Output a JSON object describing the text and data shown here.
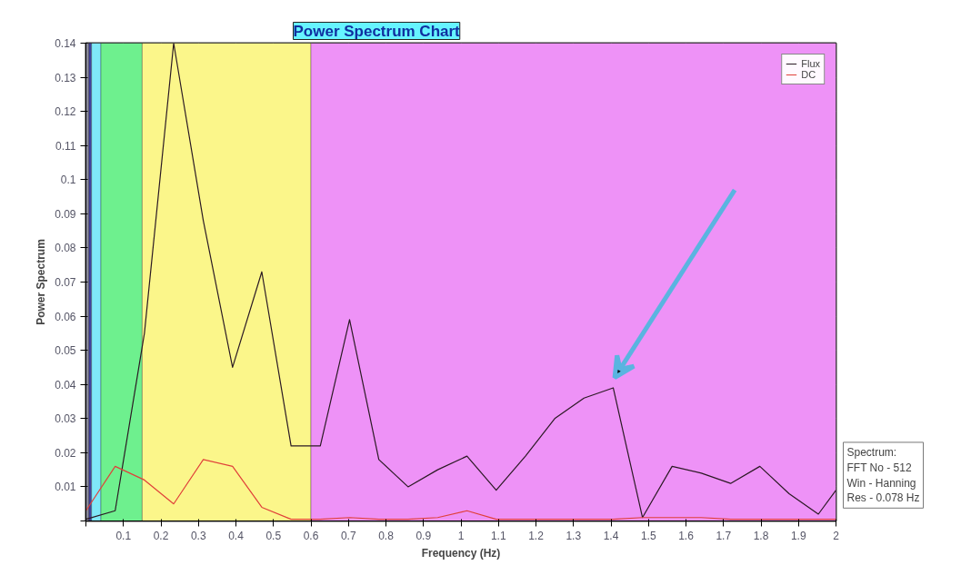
{
  "chart_data": {
    "type": "line",
    "title": "Power Spectrum Chart",
    "xlabel": "Frequency (Hz)",
    "ylabel": "Power Spectrum",
    "x": [
      0,
      0.078,
      0.156,
      0.234,
      0.313,
      0.391,
      0.469,
      0.547,
      0.625,
      0.703,
      0.781,
      0.859,
      0.938,
      1.016,
      1.094,
      1.172,
      1.25,
      1.328,
      1.406,
      1.484,
      1.563,
      1.641,
      1.719,
      1.797,
      1.875,
      1.953,
      2.0
    ],
    "series": [
      {
        "name": "Flux",
        "color": "#2b1a24",
        "values": [
          0.0005,
          0.003,
          0.055,
          0.14,
          0.088,
          0.045,
          0.073,
          0.022,
          0.022,
          0.059,
          0.018,
          0.01,
          0.015,
          0.019,
          0.009,
          0.019,
          0.03,
          0.036,
          0.039,
          0.001,
          0.016,
          0.014,
          0.011,
          0.016,
          0.008,
          0.002,
          0.009
        ]
      },
      {
        "name": "DC",
        "color": "#e0403a",
        "values": [
          0.003,
          0.016,
          0.012,
          0.005,
          0.018,
          0.016,
          0.004,
          0.0005,
          0.0005,
          0.001,
          0.0005,
          0.0005,
          0.001,
          0.003,
          0.0005,
          0.0005,
          0.0005,
          0.0005,
          0.0005,
          0.001,
          0.001,
          0.001,
          0.0005,
          0.0005,
          0.0005,
          0.0005,
          0.0005
        ]
      }
    ],
    "xlim": [
      0,
      2
    ],
    "xticks": [
      {
        "value": 0,
        "label": null
      },
      0.1,
      0.2,
      0.3,
      0.4,
      0.5,
      0.6,
      0.7,
      0.8,
      0.9,
      1,
      1.1,
      1.2,
      1.3,
      1.4,
      1.5,
      1.6,
      1.7,
      1.8,
      1.9,
      2
    ],
    "ylim": [
      0,
      0.14
    ],
    "yticks": [
      {
        "value": 0,
        "label": null
      },
      0.01,
      0.02,
      0.03,
      0.04,
      0.05,
      0.06,
      0.07,
      0.08,
      0.09,
      0.1,
      0.11,
      0.12,
      0.13,
      0.14
    ],
    "bands": [
      {
        "axis": "x",
        "from": 0,
        "to": 0.008,
        "color": "#8a8a9a"
      },
      {
        "axis": "x",
        "from": 0.008,
        "to": 0.015,
        "color": "#4040a0"
      },
      {
        "axis": "x",
        "from": 0.015,
        "to": 0.04,
        "color": "#7fe8f8"
      },
      {
        "axis": "x",
        "from": 0.04,
        "to": 0.15,
        "color": "#6ef08e"
      },
      {
        "axis": "x",
        "from": 0.15,
        "to": 0.6,
        "color": "#fbf68a"
      },
      {
        "axis": "x",
        "from": 0.6,
        "to": 2,
        "color": "#ee92f7"
      }
    ],
    "annotations": [
      "Spectrum:",
      "FFT No - 512",
      "Win - Hanning",
      "Res - 0.078 Hz"
    ],
    "grid": true,
    "legend": "top right",
    "marker": "none",
    "line_style": "solid"
  }
}
